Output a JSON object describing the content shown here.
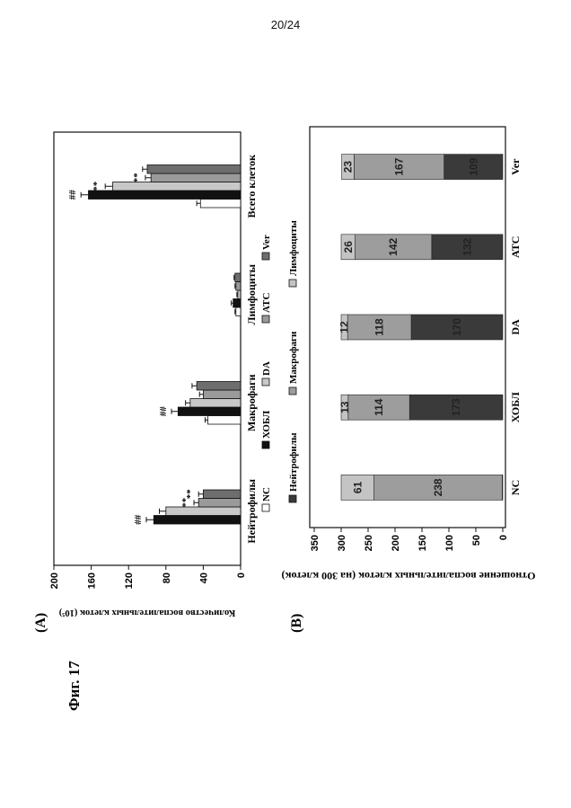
{
  "page_number": "20/24",
  "figure_label": "Фиг. 17",
  "chart_data": [
    {
      "type": "bar",
      "panel_label": "(A)",
      "ylabel": "Количество воспалительных клеток (10⁵)",
      "ylim": [
        0,
        200
      ],
      "yticks": [
        0,
        40,
        80,
        120,
        160,
        200
      ],
      "categories": [
        "Нейтрофилы",
        "Макрофаги",
        "Лимфоциты",
        "Всего клеток"
      ],
      "legend_position": "top",
      "series": [
        {
          "name": "NC",
          "color": "#ffffff",
          "values": [
            0,
            35,
            5,
            43
          ],
          "errors": [
            0,
            3,
            1,
            4
          ]
        },
        {
          "name": "ХОБЛ",
          "color": "#111111",
          "values": [
            93,
            67,
            8,
            163
          ],
          "errors": [
            8,
            7,
            2,
            8
          ]
        },
        {
          "name": "DA",
          "color": "#c8c8c8",
          "values": [
            80,
            54,
            3,
            137
          ],
          "errors": [
            7,
            5,
            1,
            8
          ]
        },
        {
          "name": "ATC",
          "color": "#9a9a9a",
          "values": [
            45,
            40,
            5,
            96
          ],
          "errors": [
            5,
            4,
            1,
            6
          ]
        },
        {
          "name": "Ver",
          "color": "#6e6e6e",
          "values": [
            40,
            47,
            6,
            100
          ],
          "errors": [
            5,
            5,
            1,
            5
          ]
        }
      ],
      "annotations": [
        {
          "category": "Нейтрофилы",
          "series": "ХОБЛ",
          "text": "##"
        },
        {
          "category": "Нейтрофилы",
          "series": "ATC",
          "text": "**"
        },
        {
          "category": "Нейтрофилы",
          "series": "Ver",
          "text": "**"
        },
        {
          "category": "Макрофаги",
          "series": "ХОБЛ",
          "text": "##"
        },
        {
          "category": "Всего клеток",
          "series": "ХОБЛ",
          "text": "##"
        },
        {
          "category": "Всего клеток",
          "series": "DA",
          "text": "**"
        },
        {
          "category": "Всего клеток",
          "series": "ATC",
          "text": "**"
        }
      ]
    },
    {
      "type": "stacked-bar",
      "panel_label": "(B)",
      "ylabel": "Отношение воспалительных клеток (на 300 клеток)",
      "ylim": [
        0,
        350
      ],
      "yticks": [
        0,
        50,
        100,
        150,
        200,
        250,
        300,
        350
      ],
      "categories": [
        "NC",
        "ХОБЛ",
        "DA",
        "ATC",
        "Ver"
      ],
      "legend_position": "top",
      "series": [
        {
          "name": "Нейтрофилы",
          "color": "#3a3a3a",
          "values": [
            1,
            173,
            170,
            132,
            109
          ]
        },
        {
          "name": "Макрофаги",
          "color": "#9d9d9d",
          "values": [
            238,
            114,
            118,
            142,
            167
          ]
        },
        {
          "name": "Лимфоциты",
          "color": "#c4c4c4",
          "values": [
            61,
            13,
            12,
            26,
            23
          ]
        }
      ]
    }
  ]
}
